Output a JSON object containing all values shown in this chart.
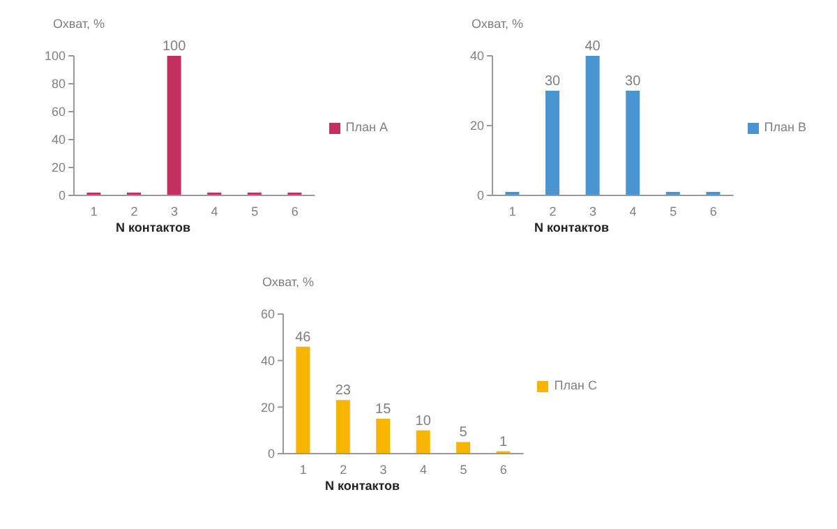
{
  "chart_data": [
    {
      "type": "bar",
      "ylabel": "Охват, %",
      "xlabel": "N контактов",
      "categories": [
        "1",
        "2",
        "3",
        "4",
        "5",
        "6"
      ],
      "ylim": [
        0,
        100
      ],
      "yticks": [
        0,
        20,
        40,
        60,
        80,
        100
      ],
      "legend": "right",
      "series": [
        {
          "name": "План А",
          "color": "#c2305f",
          "values": [
            2,
            2,
            100,
            2,
            2,
            2
          ],
          "value_labels": [
            null,
            null,
            "100",
            null,
            null,
            null
          ]
        }
      ]
    },
    {
      "type": "bar",
      "ylabel": "Охват, %",
      "xlabel": "N контактов",
      "categories": [
        "1",
        "2",
        "3",
        "4",
        "5",
        "6"
      ],
      "ylim": [
        0,
        40
      ],
      "yticks": [
        0,
        20,
        40
      ],
      "legend": "right",
      "series": [
        {
          "name": "План В",
          "color": "#4a95d0",
          "values": [
            1,
            30,
            40,
            30,
            1,
            1
          ],
          "value_labels": [
            null,
            "30",
            "40",
            "30",
            null,
            null
          ]
        }
      ]
    },
    {
      "type": "bar",
      "ylabel": "Охват, %",
      "xlabel": "N контактов",
      "categories": [
        "1",
        "2",
        "3",
        "4",
        "5",
        "6"
      ],
      "ylim": [
        0,
        60
      ],
      "yticks": [
        0,
        20,
        40,
        60
      ],
      "legend": "right",
      "series": [
        {
          "name": "План С",
          "color": "#f7b500",
          "values": [
            46,
            23,
            15,
            10,
            5,
            1
          ],
          "value_labels": [
            "46",
            "23",
            "15",
            "10",
            "5",
            "1"
          ]
        }
      ]
    }
  ]
}
